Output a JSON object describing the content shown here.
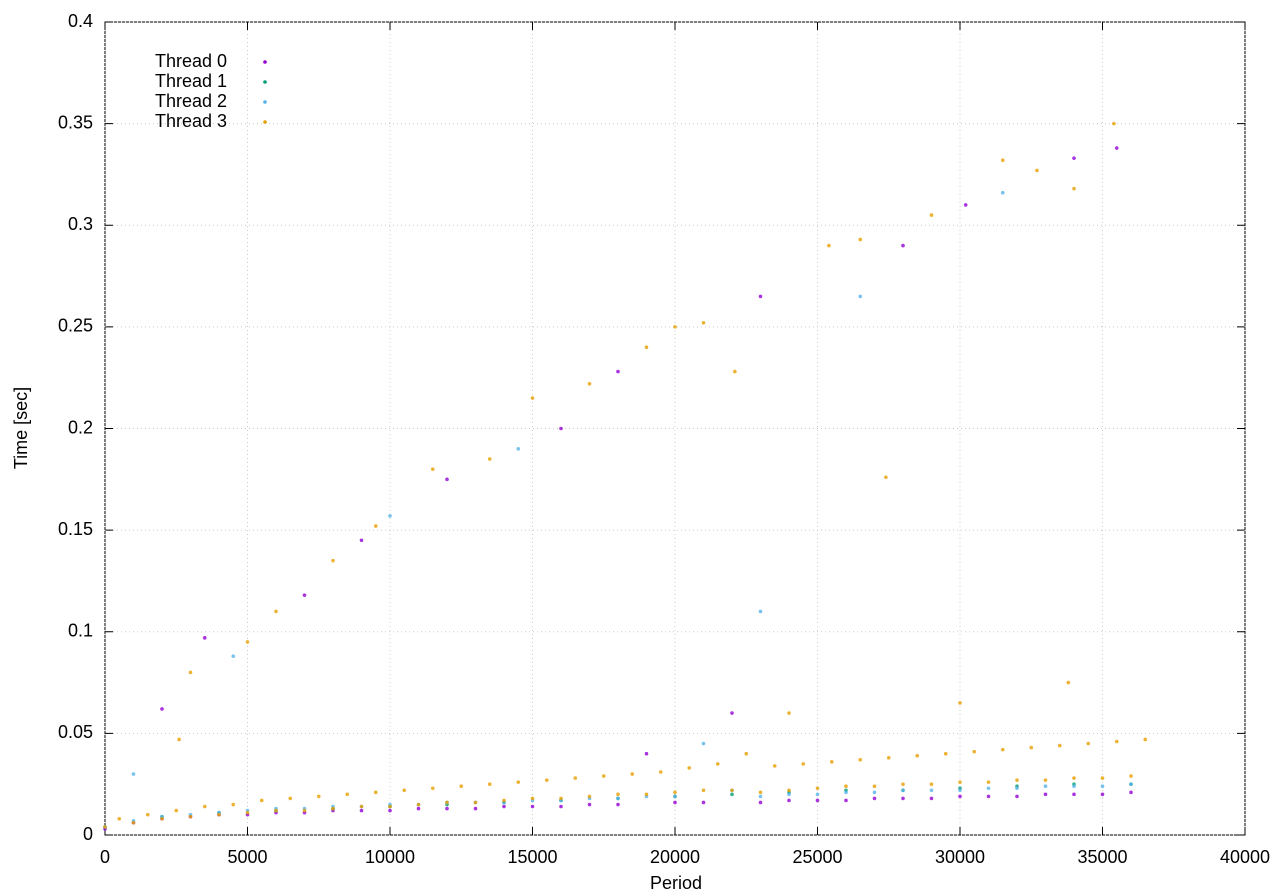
{
  "chart_data": {
    "type": "scatter",
    "xlabel": "Period",
    "ylabel": "Time [sec]",
    "xlim": [
      0,
      40000
    ],
    "xticks": [
      0,
      5000,
      10000,
      15000,
      20000,
      25000,
      30000,
      35000,
      40000
    ],
    "ylim": [
      0,
      0.4
    ],
    "yticks": [
      0,
      0.05,
      0.1,
      0.15,
      0.2,
      0.25,
      0.3,
      0.35,
      0.4
    ],
    "grid": true,
    "legend": "top-left",
    "series": [
      {
        "name": "Thread 0",
        "color": "#9400d3",
        "x": [
          0,
          1000,
          2000,
          3000,
          4000,
          5000,
          6000,
          7000,
          8000,
          9000,
          10000,
          11000,
          12000,
          13000,
          14000,
          15000,
          16000,
          17000,
          18000,
          19000,
          20000,
          21000,
          22000,
          23000,
          24000,
          25000,
          26000,
          27000,
          28000,
          29000,
          30000,
          31000,
          32000,
          33000,
          34000,
          35000,
          36000,
          3500,
          2000,
          7000,
          9000,
          12000,
          16000,
          18000,
          23000,
          28000,
          30200,
          34000,
          35500
        ],
        "values": [
          0.003,
          0.006,
          0.008,
          0.009,
          0.01,
          0.01,
          0.011,
          0.011,
          0.012,
          0.012,
          0.012,
          0.013,
          0.013,
          0.013,
          0.014,
          0.014,
          0.014,
          0.015,
          0.015,
          0.04,
          0.016,
          0.016,
          0.06,
          0.016,
          0.017,
          0.017,
          0.017,
          0.018,
          0.018,
          0.018,
          0.019,
          0.019,
          0.019,
          0.02,
          0.02,
          0.02,
          0.021,
          0.097,
          0.062,
          0.118,
          0.145,
          0.175,
          0.2,
          0.228,
          0.265,
          0.29,
          0.31,
          0.333,
          0.338
        ]
      },
      {
        "name": "Thread 1",
        "color": "#009e73",
        "x": [
          0,
          2000,
          4000,
          6000,
          8000,
          10000,
          12000,
          14000,
          16000,
          18000,
          20000,
          22000,
          24000,
          26000,
          28000,
          30000,
          32000,
          34000,
          36000
        ],
        "values": [
          0.004,
          0.009,
          0.011,
          0.012,
          0.013,
          0.014,
          0.015,
          0.016,
          0.017,
          0.018,
          0.019,
          0.02,
          0.021,
          0.022,
          0.022,
          0.023,
          0.024,
          0.025,
          0.025
        ]
      },
      {
        "name": "Thread 2",
        "color": "#56b4e9",
        "x": [
          0,
          1000,
          2000,
          3000,
          4000,
          5000,
          6000,
          7000,
          8000,
          9000,
          10000,
          11000,
          12000,
          13000,
          14000,
          15000,
          16000,
          17000,
          18000,
          19000,
          20000,
          21000,
          22000,
          23000,
          24000,
          25000,
          26000,
          27000,
          28000,
          29000,
          30000,
          31000,
          32000,
          33000,
          34000,
          35000,
          36000,
          1000,
          4500,
          10000,
          14500,
          23000,
          26500,
          31500
        ],
        "values": [
          0.004,
          0.007,
          0.009,
          0.01,
          0.011,
          0.012,
          0.013,
          0.013,
          0.014,
          0.014,
          0.015,
          0.015,
          0.016,
          0.016,
          0.016,
          0.017,
          0.017,
          0.018,
          0.018,
          0.019,
          0.019,
          0.045,
          0.022,
          0.019,
          0.02,
          0.02,
          0.021,
          0.021,
          0.022,
          0.022,
          0.022,
          0.023,
          0.023,
          0.024,
          0.024,
          0.024,
          0.025,
          0.03,
          0.088,
          0.157,
          0.19,
          0.11,
          0.265,
          0.316
        ]
      },
      {
        "name": "Thread 3",
        "color": "#e69f00",
        "x": [
          0,
          500,
          1000,
          1500,
          2000,
          2500,
          3000,
          3500,
          4000,
          4500,
          5000,
          5500,
          6000,
          6500,
          7000,
          7500,
          8000,
          8500,
          9000,
          9500,
          10000,
          10500,
          11000,
          11500,
          12000,
          12500,
          13000,
          13500,
          14000,
          14500,
          15000,
          15500,
          16000,
          16500,
          17000,
          17500,
          18000,
          18500,
          19000,
          19500,
          20000,
          20500,
          21000,
          21500,
          22000,
          22500,
          23000,
          23500,
          24000,
          24500,
          25000,
          25500,
          26000,
          26500,
          27000,
          27500,
          28000,
          28500,
          29000,
          29500,
          30000,
          30500,
          31000,
          31500,
          32000,
          32500,
          33000,
          33500,
          34000,
          34500,
          35000,
          35500,
          36000,
          36500,
          2600,
          3000,
          5000,
          6000,
          8000,
          9500,
          11500,
          13500,
          15000,
          17000,
          19000,
          20000,
          21000,
          22100,
          25400,
          26500,
          27400,
          29000,
          31500,
          32700,
          34000,
          35400,
          30000,
          33800,
          24000
        ],
        "values": [
          0.004,
          0.008,
          0.006,
          0.01,
          0.008,
          0.012,
          0.009,
          0.014,
          0.01,
          0.015,
          0.011,
          0.017,
          0.012,
          0.018,
          0.012,
          0.019,
          0.013,
          0.02,
          0.014,
          0.021,
          0.014,
          0.022,
          0.015,
          0.023,
          0.016,
          0.024,
          0.016,
          0.025,
          0.017,
          0.026,
          0.018,
          0.027,
          0.018,
          0.028,
          0.019,
          0.029,
          0.02,
          0.03,
          0.02,
          0.031,
          0.021,
          0.033,
          0.022,
          0.035,
          0.022,
          0.04,
          0.021,
          0.034,
          0.022,
          0.035,
          0.023,
          0.036,
          0.024,
          0.037,
          0.024,
          0.038,
          0.025,
          0.039,
          0.025,
          0.04,
          0.026,
          0.041,
          0.026,
          0.042,
          0.027,
          0.043,
          0.027,
          0.044,
          0.028,
          0.045,
          0.028,
          0.046,
          0.029,
          0.047,
          0.047,
          0.08,
          0.095,
          0.11,
          0.135,
          0.152,
          0.18,
          0.185,
          0.215,
          0.222,
          0.24,
          0.25,
          0.252,
          0.228,
          0.29,
          0.293,
          0.176,
          0.305,
          0.332,
          0.327,
          0.318,
          0.35,
          0.065,
          0.075,
          0.06
        ]
      }
    ]
  }
}
